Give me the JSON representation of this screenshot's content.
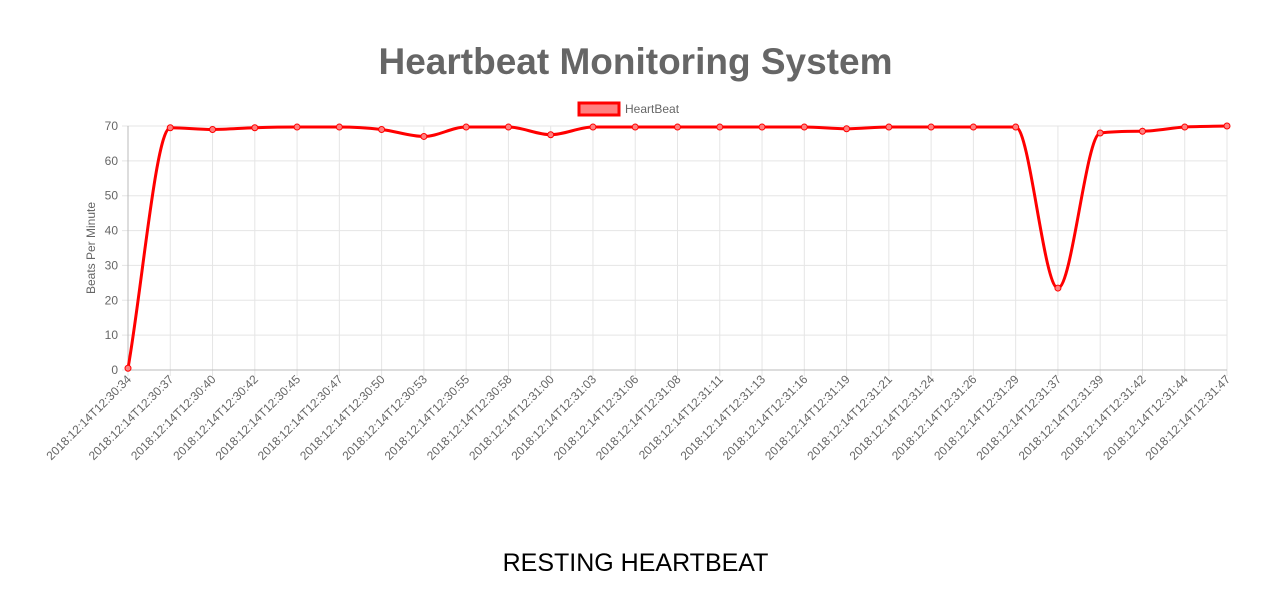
{
  "page": {
    "title": "Heartbeat Monitoring System",
    "footer_label": "RESTING HEARTBEAT"
  },
  "colors": {
    "line": "#ff0000",
    "legend_fill": "#ff8080",
    "grid": "#e5e5e5",
    "axis_text": "#666666",
    "title_text": "#666666"
  },
  "chart_data": {
    "type": "line",
    "title": "",
    "xlabel": "",
    "ylabel": "Beats Per Minute",
    "ylim": [
      0,
      70
    ],
    "yticks": [
      0,
      10,
      20,
      30,
      40,
      50,
      60,
      70
    ],
    "grid": true,
    "legend_position": "top-center",
    "smooth": true,
    "categories": [
      "2018:12:14T12:30:34",
      "2018:12:14T12:30:37",
      "2018:12:14T12:30:40",
      "2018:12:14T12:30:42",
      "2018:12:14T12:30:45",
      "2018:12:14T12:30:47",
      "2018:12:14T12:30:50",
      "2018:12:14T12:30:53",
      "2018:12:14T12:30:55",
      "2018:12:14T12:30:58",
      "2018:12:14T12:31:00",
      "2018:12:14T12:31:03",
      "2018:12:14T12:31:06",
      "2018:12:14T12:31:08",
      "2018:12:14T12:31:11",
      "2018:12:14T12:31:13",
      "2018:12:14T12:31:16",
      "2018:12:14T12:31:19",
      "2018:12:14T12:31:21",
      "2018:12:14T12:31:24",
      "2018:12:14T12:31:26",
      "2018:12:14T12:31:29",
      "2018:12:14T12:31:37",
      "2018:12:14T12:31:39",
      "2018:12:14T12:31:42",
      "2018:12:14T12:31:44",
      "2018:12:14T12:31:47"
    ],
    "series": [
      {
        "name": "HeartBeat",
        "values": [
          0.5,
          69.5,
          69,
          69.5,
          69.7,
          69.7,
          69,
          67,
          69.7,
          69.7,
          67.5,
          69.7,
          69.7,
          69.7,
          69.7,
          69.7,
          69.7,
          69.2,
          69.7,
          69.7,
          69.7,
          69.7,
          23.5,
          68,
          68.5,
          69.7,
          70
        ]
      }
    ]
  }
}
